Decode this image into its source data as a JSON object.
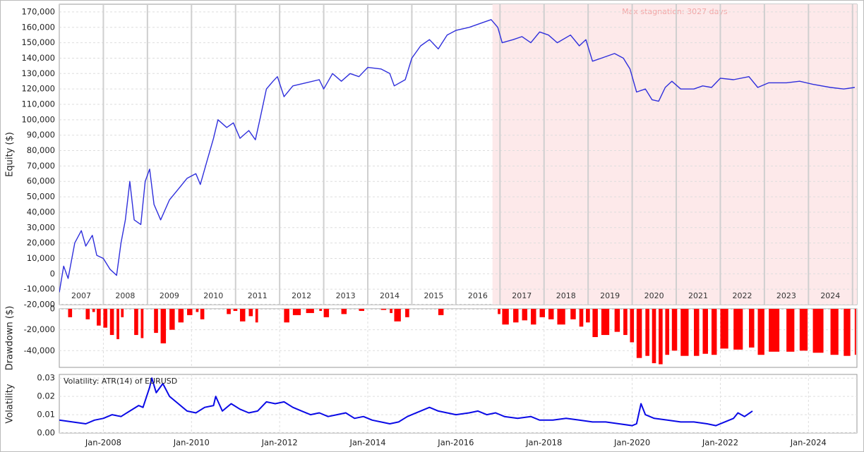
{
  "chart_data": [
    {
      "type": "line",
      "y_label": "Equity ($)",
      "color": "#2f2fdc",
      "grid": true,
      "xlim": [
        2007.0,
        2025.1
      ],
      "ylim": [
        -20000,
        175000
      ],
      "xticks": [
        2007,
        2008,
        2009,
        2010,
        2011,
        2012,
        2013,
        2014,
        2015,
        2016,
        2017,
        2018,
        2019,
        2020,
        2021,
        2022,
        2023,
        2024,
        2025
      ],
      "yticks": [
        {
          "value": -20000,
          "label": "-20,000"
        },
        {
          "value": -10000,
          "label": "-10,000"
        },
        0,
        {
          "value": 10000,
          "label": "10,000"
        },
        {
          "value": 20000,
          "label": "20,000"
        },
        {
          "value": 30000,
          "label": "30,000"
        },
        {
          "value": 40000,
          "label": "40,000"
        },
        {
          "value": 50000,
          "label": "50,000"
        },
        {
          "value": 60000,
          "label": "60,000"
        },
        {
          "value": 70000,
          "label": "70,000"
        },
        {
          "value": 80000,
          "label": "80,000"
        },
        {
          "value": 90000,
          "label": "90,000"
        },
        {
          "value": 100000,
          "label": "100,000"
        },
        {
          "value": 110000,
          "label": "110,000"
        },
        {
          "value": 120000,
          "label": "120,000"
        },
        {
          "value": 130000,
          "label": "130,000"
        },
        {
          "value": 140000,
          "label": "140,000"
        },
        {
          "value": 150000,
          "label": "150,000"
        },
        {
          "value": 160000,
          "label": "160,000"
        },
        {
          "value": 170000,
          "label": "170,000"
        }
      ],
      "stagnation": [
        2016.83,
        2025.1
      ],
      "stagnation_label": "Max stagnation: 3027 days",
      "x": [
        2007.0,
        2007.1,
        2007.2,
        2007.35,
        2007.5,
        2007.6,
        2007.75,
        2007.85,
        2008.0,
        2008.15,
        2008.3,
        2008.4,
        2008.5,
        2008.6,
        2008.7,
        2008.85,
        2008.95,
        2009.05,
        2009.15,
        2009.3,
        2009.5,
        2009.7,
        2009.9,
        2010.1,
        2010.2,
        2010.35,
        2010.5,
        2010.6,
        2010.8,
        2010.95,
        2011.1,
        2011.3,
        2011.45,
        2011.55,
        2011.7,
        2011.85,
        2011.95,
        2012.1,
        2012.3,
        2012.6,
        2012.9,
        2013.0,
        2013.2,
        2013.4,
        2013.6,
        2013.8,
        2014.0,
        2014.3,
        2014.5,
        2014.6,
        2014.85,
        2015.0,
        2015.2,
        2015.4,
        2015.6,
        2015.8,
        2016.0,
        2016.3,
        2016.6,
        2016.8,
        2016.95,
        2017.05,
        2017.3,
        2017.5,
        2017.7,
        2017.9,
        2018.1,
        2018.3,
        2018.6,
        2018.8,
        2018.95,
        2019.1,
        2019.3,
        2019.6,
        2019.8,
        2019.95,
        2020.1,
        2020.3,
        2020.45,
        2020.6,
        2020.75,
        2020.9,
        2021.1,
        2021.4,
        2021.6,
        2021.8,
        2022.0,
        2022.3,
        2022.65,
        2022.85,
        2023.1,
        2023.5,
        2023.8,
        2024.1,
        2024.5,
        2024.8,
        2025.05
      ],
      "values": [
        -12000,
        5000,
        -3000,
        20000,
        28000,
        18000,
        25000,
        12000,
        10000,
        3000,
        -1000,
        20000,
        35000,
        60000,
        35000,
        32000,
        60000,
        68000,
        45000,
        35000,
        48000,
        55000,
        62000,
        65000,
        58000,
        73000,
        88000,
        100000,
        95000,
        98000,
        88000,
        93000,
        87000,
        100000,
        120000,
        125000,
        128000,
        115000,
        122000,
        124000,
        126000,
        120000,
        130000,
        125000,
        130000,
        128000,
        134000,
        133000,
        130000,
        122000,
        126000,
        140000,
        148000,
        152000,
        146000,
        155000,
        158000,
        160000,
        163000,
        165000,
        160000,
        150000,
        152000,
        154000,
        150000,
        157000,
        155000,
        150000,
        155000,
        148000,
        152000,
        138000,
        140000,
        143000,
        140000,
        133000,
        118000,
        120000,
        113000,
        112000,
        121000,
        125000,
        120000,
        120000,
        122000,
        121000,
        127000,
        126000,
        128000,
        121000,
        124000,
        124000,
        125000,
        123000,
        121000,
        120000,
        121000
      ]
    },
    {
      "type": "bar",
      "y_label": "Drawdown ($)",
      "color": "#ff0000",
      "grid": true,
      "xlim": [
        2007.0,
        2025.1
      ],
      "ylim": [
        -56000,
        0
      ],
      "yticks": [
        0,
        {
          "value": -20000,
          "label": "-20,000"
        },
        {
          "value": -40000,
          "label": "-40,000"
        }
      ],
      "x": [
        2007.0,
        2007.1,
        2007.2,
        2007.35,
        2007.5,
        2007.6,
        2007.75,
        2007.85,
        2008.0,
        2008.15,
        2008.3,
        2008.4,
        2008.5,
        2008.6,
        2008.7,
        2008.85,
        2008.95,
        2009.05,
        2009.15,
        2009.3,
        2009.5,
        2009.7,
        2009.9,
        2010.1,
        2010.2,
        2010.35,
        2010.5,
        2010.6,
        2010.8,
        2010.95,
        2011.1,
        2011.3,
        2011.45,
        2011.55,
        2011.7,
        2011.85,
        2011.95,
        2012.1,
        2012.3,
        2012.6,
        2012.9,
        2013.0,
        2013.2,
        2013.4,
        2013.6,
        2013.8,
        2014.0,
        2014.3,
        2014.5,
        2014.6,
        2014.85,
        2015.0,
        2015.2,
        2015.4,
        2015.6,
        2015.8,
        2016.0,
        2016.3,
        2016.6,
        2016.8,
        2016.95,
        2017.05,
        2017.3,
        2017.5,
        2017.7,
        2017.9,
        2018.1,
        2018.3,
        2018.6,
        2018.8,
        2018.95,
        2019.1,
        2019.3,
        2019.6,
        2019.8,
        2019.95,
        2020.1,
        2020.3,
        2020.45,
        2020.6,
        2020.75,
        2020.9,
        2021.1,
        2021.4,
        2021.6,
        2021.8,
        2022.0,
        2022.3,
        2022.65,
        2022.85,
        2023.1,
        2023.5,
        2023.8,
        2024.1,
        2024.5,
        2024.8,
        2025.05
      ],
      "values": [
        0,
        0,
        -8000,
        0,
        0,
        -10000,
        -3000,
        -16000,
        -18000,
        -25000,
        -29000,
        -8000,
        0,
        0,
        -25000,
        -28000,
        0,
        0,
        -23000,
        -33000,
        -20000,
        -13000,
        -6000,
        -3000,
        -10000,
        0,
        0,
        0,
        -5000,
        -2000,
        -12000,
        -7000,
        -13000,
        0,
        0,
        0,
        0,
        -13000,
        -6000,
        -4000,
        -2000,
        -8000,
        0,
        -5000,
        0,
        -2000,
        0,
        -1000,
        -4000,
        -12000,
        -8000,
        0,
        0,
        0,
        -6000,
        0,
        0,
        0,
        0,
        0,
        -5000,
        -15000,
        -13000,
        -11000,
        -15000,
        -8000,
        -10000,
        -15000,
        -10000,
        -17000,
        -13000,
        -27000,
        -25000,
        -22000,
        -25000,
        -32000,
        -47000,
        -45000,
        -52000,
        -53000,
        -44000,
        -40000,
        -45000,
        -45000,
        -43000,
        -44000,
        -38000,
        -39000,
        -37000,
        -44000,
        -41000,
        -41000,
        -40000,
        -42000,
        -44000,
        -45000,
        -44000
      ]
    },
    {
      "type": "line",
      "y_label": "Volatility",
      "label": "Volatility: ATR(14) of EURUSD",
      "color": "#0a0ae6",
      "grid": true,
      "xlim": [
        2007.0,
        2025.1
      ],
      "ylim": [
        0,
        0.032
      ],
      "xticks": [
        {
          "value": 2008,
          "label": "Jan-2008"
        },
        {
          "value": 2010,
          "label": "Jan-2010"
        },
        {
          "value": 2012,
          "label": "Jan-2012"
        },
        {
          "value": 2014,
          "label": "Jan-2014"
        },
        {
          "value": 2016,
          "label": "Jan-2016"
        },
        {
          "value": 2018,
          "label": "Jan-2018"
        },
        {
          "value": 2020,
          "label": "Jan-2020"
        },
        {
          "value": 2022,
          "label": "Jan-2022"
        },
        {
          "value": 2024,
          "label": "Jan-2024"
        }
      ],
      "yticks": [
        {
          "value": 0,
          "label": "0.00"
        },
        0.01,
        0.02,
        0.03
      ],
      "x": [
        2007.0,
        2007.3,
        2007.6,
        2007.8,
        2008.0,
        2008.2,
        2008.4,
        2008.6,
        2008.8,
        2008.9,
        2009.05,
        2009.1,
        2009.2,
        2009.35,
        2009.5,
        2009.7,
        2009.9,
        2010.1,
        2010.3,
        2010.5,
        2010.55,
        2010.7,
        2010.9,
        2011.1,
        2011.3,
        2011.5,
        2011.7,
        2011.9,
        2012.1,
        2012.3,
        2012.5,
        2012.7,
        2012.9,
        2013.1,
        2013.3,
        2013.5,
        2013.7,
        2013.9,
        2014.1,
        2014.3,
        2014.5,
        2014.7,
        2014.9,
        2015.0,
        2015.4,
        2015.6,
        2015.8,
        2016.0,
        2016.3,
        2016.5,
        2016.7,
        2016.9,
        2017.1,
        2017.4,
        2017.7,
        2017.9,
        2018.2,
        2018.5,
        2018.8,
        2019.1,
        2019.4,
        2019.7,
        2020.0,
        2020.1,
        2020.2,
        2020.3,
        2020.5,
        2020.8,
        2021.1,
        2021.4,
        2021.7,
        2021.9,
        2022.1,
        2022.3,
        2022.4,
        2022.55,
        2022.73
      ],
      "values": [
        0.007,
        0.006,
        0.005,
        0.007,
        0.008,
        0.01,
        0.009,
        0.012,
        0.015,
        0.014,
        0.025,
        0.03,
        0.022,
        0.027,
        0.02,
        0.016,
        0.012,
        0.011,
        0.014,
        0.015,
        0.02,
        0.012,
        0.016,
        0.013,
        0.011,
        0.012,
        0.017,
        0.016,
        0.017,
        0.014,
        0.012,
        0.01,
        0.011,
        0.009,
        0.01,
        0.011,
        0.008,
        0.009,
        0.007,
        0.006,
        0.005,
        0.006,
        0.009,
        0.01,
        0.014,
        0.012,
        0.011,
        0.01,
        0.011,
        0.012,
        0.01,
        0.011,
        0.009,
        0.008,
        0.009,
        0.007,
        0.007,
        0.008,
        0.007,
        0.006,
        0.006,
        0.005,
        0.004,
        0.005,
        0.016,
        0.01,
        0.008,
        0.007,
        0.006,
        0.006,
        0.005,
        0.004,
        0.006,
        0.008,
        0.011,
        0.009,
        0.012
      ]
    }
  ]
}
